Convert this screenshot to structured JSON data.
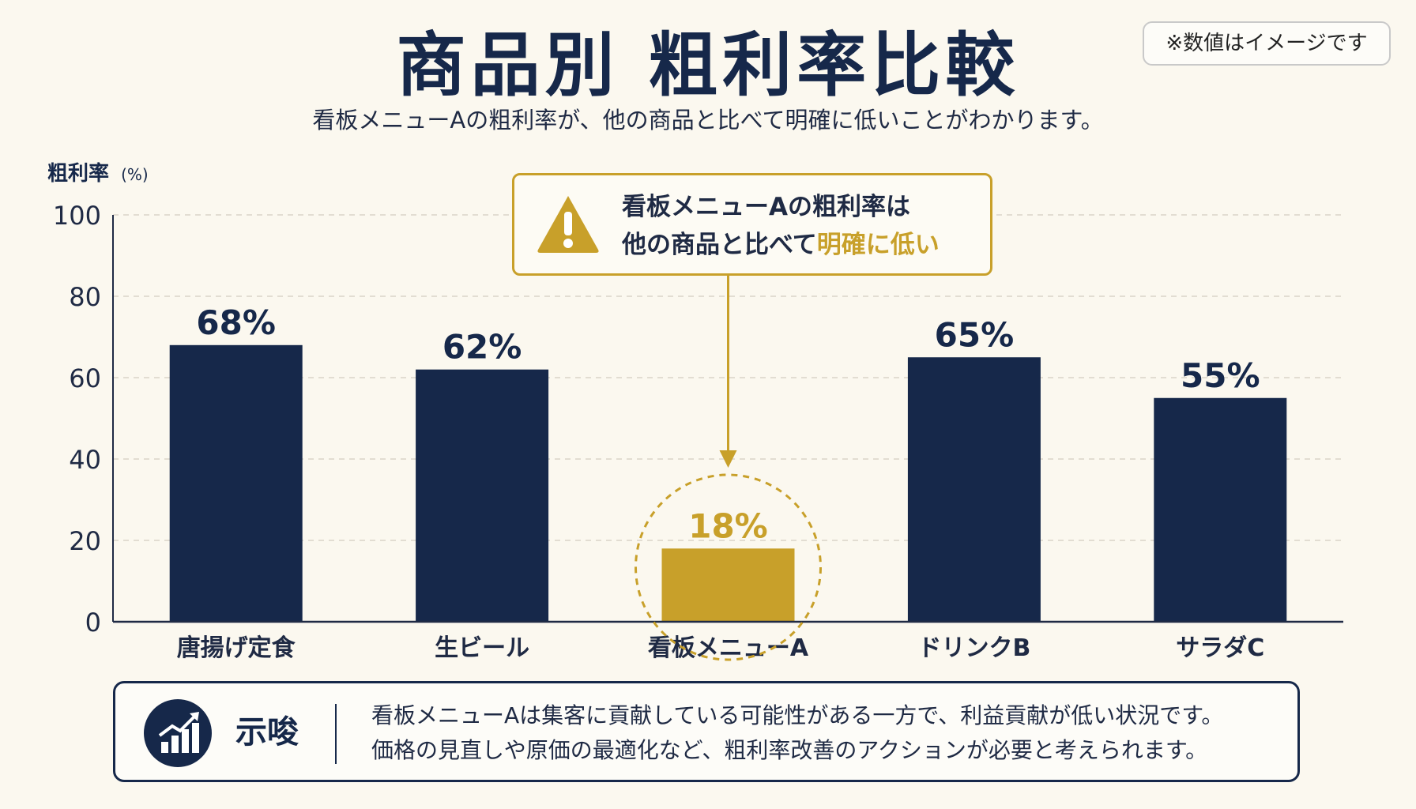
{
  "title": "商品別 粗利率比較",
  "subtitle": "看板メニューAの粗利率が、他の商品と比べて明確に低いことがわかります。",
  "note": "※数値はイメージです",
  "callout": {
    "line1": "看板メニューAの粗利率は",
    "line2_prefix": "他の商品と比べて",
    "line2_highlight": "明確に低い"
  },
  "insight": {
    "label": "示唆",
    "line1": "看板メニューAは集客に貢献している可能性がある一方で、利益貢献が低い状況です。",
    "line2": "価格の見直しや原価の最適化など、粗利率改善のアクションが必要と考えられます。"
  },
  "colors": {
    "navy": "#16284a",
    "gold": "#c8a02a",
    "background": "#fbf8ef",
    "grid": "#d9d4c8"
  },
  "icons": {
    "callout": "warning-triangle-icon",
    "insight": "growth-chart-icon"
  },
  "chart_data": {
    "type": "bar",
    "title": "商品別 粗利率比較",
    "ylabel": "粗利率",
    "ylabel_unit": "(%)",
    "xlabel": "",
    "ylim": [
      0,
      100
    ],
    "yticks": [
      0,
      20,
      40,
      60,
      80,
      100
    ],
    "grid": true,
    "categories": [
      "唐揚げ定食",
      "生ビール",
      "看板メニューA",
      "ドリンクB",
      "サラダC"
    ],
    "values": [
      68,
      62,
      18,
      65,
      55
    ],
    "value_labels": [
      "68%",
      "62%",
      "18%",
      "65%",
      "55%"
    ],
    "highlight_index": 2
  }
}
